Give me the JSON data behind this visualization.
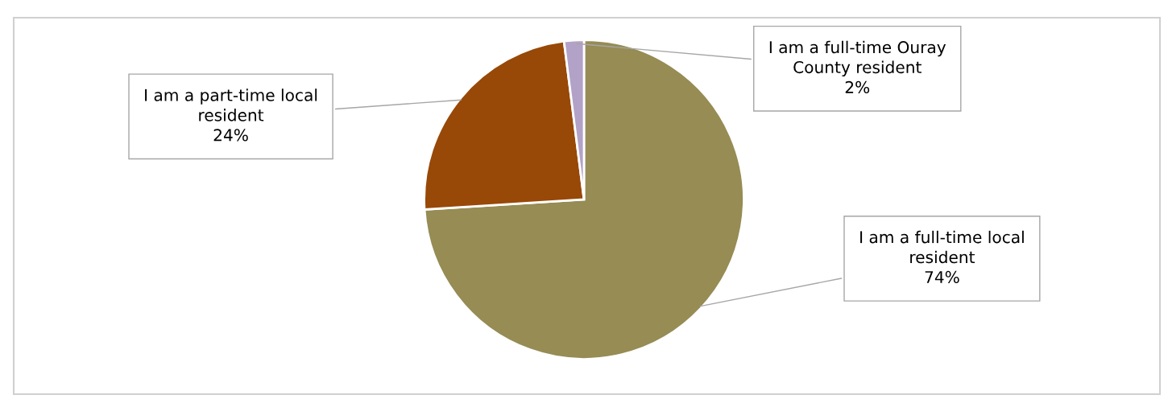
{
  "chart_data": {
    "type": "pie",
    "categories": [
      "I am a full-time local resident",
      "I am a part-time local resident",
      "I am a full-time Ouray County resident"
    ],
    "values": [
      74,
      24,
      2
    ],
    "colors": [
      "#968c54",
      "#984807",
      "#b3a2c7"
    ],
    "value_labels": [
      "74%",
      "24%",
      "2%"
    ],
    "legend": false
  }
}
